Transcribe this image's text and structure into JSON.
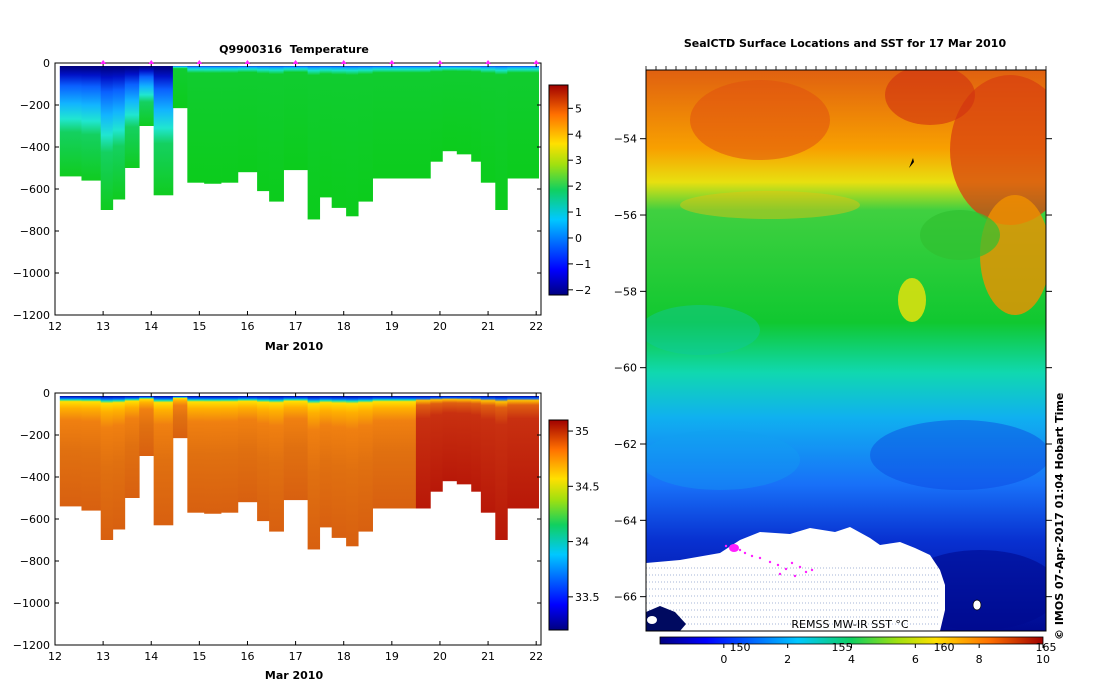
{
  "chart_data": [
    {
      "type": "heatmap",
      "name": "temperature-section",
      "title": "Q9900316  Temperature",
      "xlabel": "Mar 2010",
      "ylabel": "",
      "xlim": [
        12,
        22.1
      ],
      "ylim": [
        -1200,
        0
      ],
      "x_ticks": [
        12,
        13,
        14,
        15,
        16,
        17,
        18,
        19,
        20,
        21,
        22
      ],
      "y_ticks": [
        0,
        -200,
        -400,
        -600,
        -800,
        -1000,
        -1200
      ],
      "profile_markers": [
        13,
        14,
        15,
        16,
        17,
        18,
        19,
        20,
        21,
        22
      ],
      "profiles": {
        "x_edges": [
          12.1,
          12.55,
          12.95,
          13.2,
          13.45,
          13.75,
          14.05,
          14.45,
          14.75,
          15.1,
          15.45,
          15.8,
          16.2,
          16.45,
          16.75,
          17.25,
          17.5,
          17.75,
          18.05,
          18.3,
          18.6,
          19.05,
          19.5,
          19.8,
          20.05,
          20.35,
          20.65,
          20.85,
          21.15,
          21.4,
          22.05
        ],
        "bottom_depth": [
          -540,
          -560,
          -700,
          -650,
          -500,
          -300,
          -630,
          -215,
          -570,
          -575,
          -570,
          -520,
          -610,
          -660,
          -510,
          -745,
          -640,
          -690,
          -730,
          -660,
          -550,
          -550,
          -550,
          -470,
          -420,
          -435,
          -470,
          -570,
          -700,
          -550,
          -580
        ]
      },
      "colorbar": {
        "min": -2.2,
        "max": 5.9,
        "ticks": [
          -2,
          -1,
          0,
          1,
          2,
          3,
          4,
          5
        ],
        "colormap": "jet"
      },
      "regions": [
        {
          "x_range": [
            12.1,
            14.45
          ],
          "value": "-1.9 at surface warming to 1.6 at depth (cold layer)"
        },
        {
          "x_range": [
            14.45,
            22.05
          ],
          "value": "~1.5 below 100 m, ~0.4 near surface"
        }
      ]
    },
    {
      "type": "heatmap",
      "name": "salinity-section",
      "title": "",
      "xlabel": "Mar 2010",
      "ylabel": "",
      "xlim": [
        12,
        22.1
      ],
      "ylim": [
        -1200,
        0
      ],
      "x_ticks": [
        12,
        13,
        14,
        15,
        16,
        17,
        18,
        19,
        20,
        21,
        22
      ],
      "y_ticks": [
        0,
        -200,
        -400,
        -600,
        -800,
        -1000,
        -1200
      ],
      "colorbar": {
        "min": 33.2,
        "max": 35.1,
        "ticks": [
          33.5,
          34,
          34.5,
          35
        ],
        "colormap": "jet"
      },
      "regions": [
        {
          "x_range": [
            12.1,
            22.05
          ],
          "value": "33.3 at surface rising to ~34.7 below 150 m"
        },
        {
          "x_range": [
            19.5,
            22.05
          ],
          "value": "~34.95 below 150 m"
        }
      ]
    },
    {
      "type": "heatmap",
      "name": "sst-map",
      "title": "SealCTD Surface Locations and SST for 17 Mar 2010",
      "xlabel": "",
      "ylabel": "",
      "ylim": [
        -66.9,
        -52.2
      ],
      "y_ticks": [
        -54,
        -56,
        -58,
        -60,
        -62,
        -64,
        -66
      ],
      "lon_tick_labels": [
        "150",
        "155",
        "160",
        "165"
      ],
      "product_label": "REMSS MW-IR SST °C",
      "colorbar": {
        "min": -2,
        "max": 10,
        "ticks": [
          0,
          2,
          4,
          6,
          8,
          10
        ],
        "colormap": "jet"
      },
      "zonal_pattern": [
        {
          "lat_range": [
            -55.5,
            -52.2
          ],
          "sst_degC": "7 to 9"
        },
        {
          "lat_range": [
            -58.5,
            -55.5
          ],
          "sst_degC": "4 to 6"
        },
        {
          "lat_range": [
            -61.5,
            -58.5
          ],
          "sst_degC": "2 to 3.5"
        },
        {
          "lat_range": [
            -64,
            -61.5
          ],
          "sst_degC": "0.5 to 2"
        },
        {
          "lat_range": [
            -66.9,
            -64
          ],
          "sst_degC": "-1.5 to 0.5"
        }
      ],
      "land_mask": "Antarctic coast / ice, south-west of map"
    }
  ],
  "credit": "© IMOS 07-Apr-2017 01:04 Hobart Time"
}
